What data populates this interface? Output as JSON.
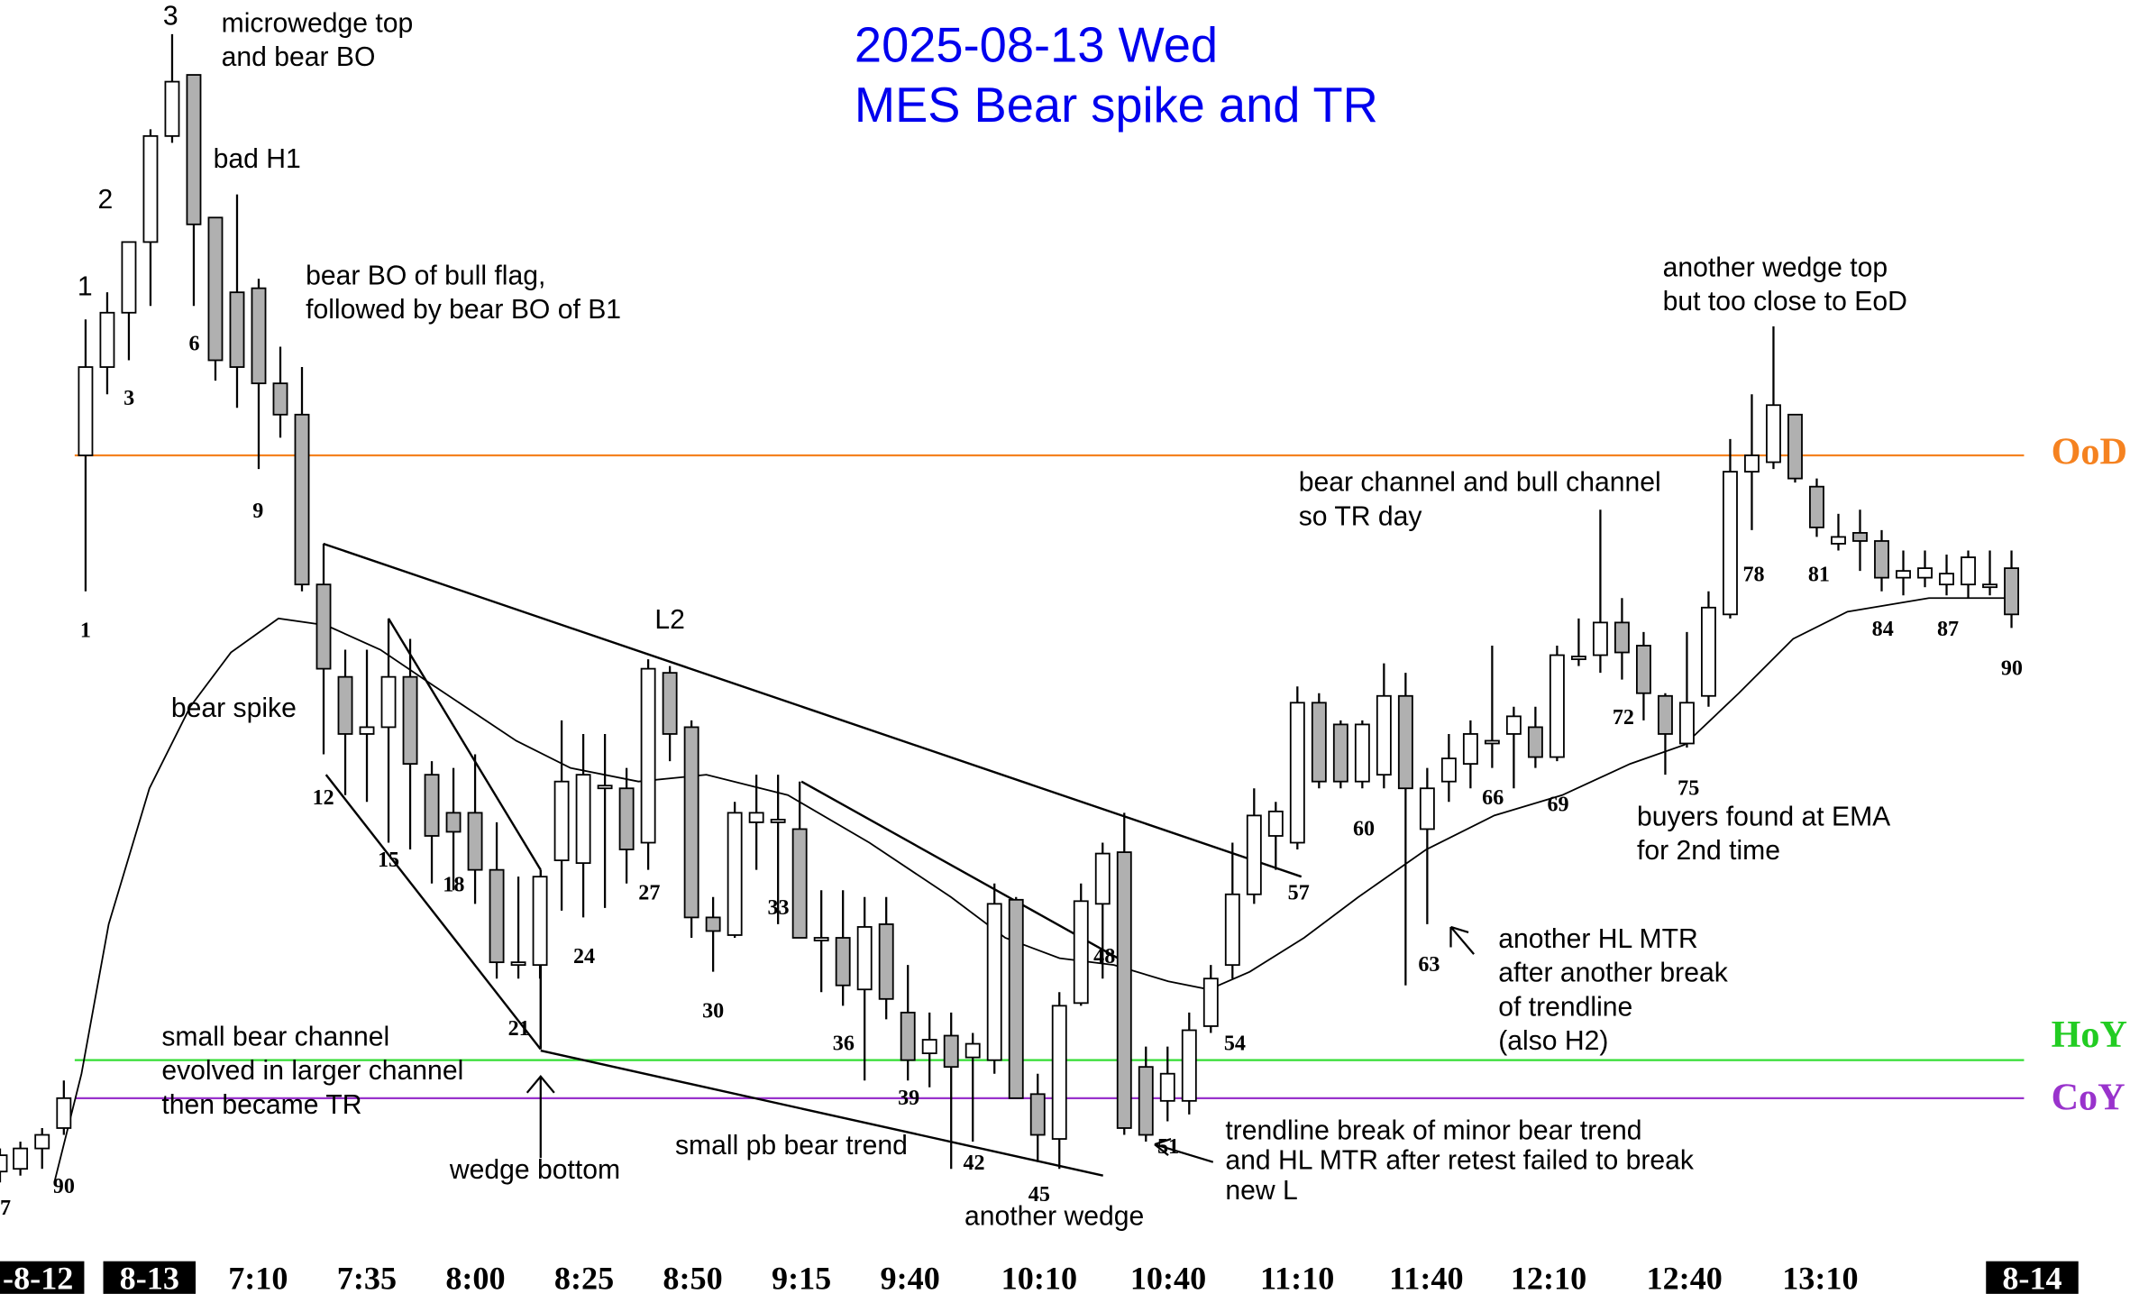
{
  "title": [
    "2025-08-13 Wed",
    "MES Bear spike and TR"
  ],
  "annotations": [
    [
      "3"
    ],
    [
      "2"
    ],
    [
      "1"
    ],
    [
      "microwedge top",
      "and bear BO"
    ],
    [
      "bad H1"
    ],
    [
      "bear BO of bull flag,",
      "followed by bear BO of B1"
    ],
    [
      "bear spike"
    ],
    [
      "L2"
    ],
    [
      "small bear channel",
      "evolved in larger channel",
      "then became TR"
    ],
    [
      "wedge bottom"
    ],
    [
      "small pb bear trend"
    ],
    [
      "another wedge"
    ],
    [
      "trendline break of minor bear trend",
      "and HL MTR after retest failed to break",
      "new L"
    ],
    [
      "bear channel and bull channel",
      "so TR day"
    ],
    [
      "another HL MTR",
      "after another break",
      "of trendline",
      "(also H2)"
    ],
    [
      "buyers found at EMA",
      "for 2nd time"
    ],
    [
      "another wedge top",
      "but too close to EoD"
    ]
  ],
  "bar_labels": [
    "1",
    "3",
    "6",
    "9",
    "12",
    "15",
    "18",
    "21",
    "24",
    "27",
    "30",
    "33",
    "36",
    "39",
    "42",
    "45",
    "48",
    "51",
    "54",
    "57",
    "60",
    "63",
    "66",
    "69",
    "72",
    "75",
    "78",
    "81",
    "84",
    "87",
    "90",
    "90",
    "7"
  ],
  "levels": [
    "OoD",
    "HoY",
    "CoY"
  ],
  "time_labels": [
    "-8-12",
    "8-13",
    "7:10",
    "7:35",
    "8:00",
    "8:25",
    "8:50",
    "9:15",
    "9:40",
    "10:10",
    "10:40",
    "11:10",
    "11:40",
    "12:10",
    "12:40",
    "13:10",
    "8-14"
  ]
}
